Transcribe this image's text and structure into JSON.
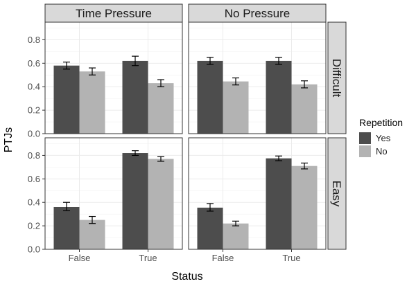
{
  "chart_data": {
    "type": "bar",
    "facet_columns": [
      "Time Pressure",
      "No Pressure"
    ],
    "facet_rows": [
      "Difficult",
      "Easy"
    ],
    "categories": [
      "False",
      "True"
    ],
    "xlabel": "Status",
    "ylabel": "PTJs",
    "ylim": [
      0,
      0.95
    ],
    "yticks": [
      0.0,
      0.2,
      0.4,
      0.6,
      0.8
    ],
    "ytick_labels": [
      "0.0",
      "0.2",
      "0.4",
      "0.6",
      "0.8"
    ],
    "legend": {
      "title": "Repetition",
      "position": "right",
      "entries": [
        {
          "name": "Yes",
          "color": "#4d4d4d"
        },
        {
          "name": "No",
          "color": "#b3b3b3"
        }
      ]
    },
    "grid": true,
    "panels": [
      {
        "row": "Difficult",
        "col": "Time Pressure",
        "series": [
          {
            "name": "Yes",
            "values": [
              0.58,
              0.62
            ],
            "err_low": [
              0.55,
              0.58
            ],
            "err_high": [
              0.61,
              0.66
            ]
          },
          {
            "name": "No",
            "values": [
              0.53,
              0.43
            ],
            "err_low": [
              0.5,
              0.4
            ],
            "err_high": [
              0.56,
              0.46
            ]
          }
        ]
      },
      {
        "row": "Difficult",
        "col": "No Pressure",
        "series": [
          {
            "name": "Yes",
            "values": [
              0.62,
              0.62
            ],
            "err_low": [
              0.59,
              0.59
            ],
            "err_high": [
              0.65,
              0.65
            ]
          },
          {
            "name": "No",
            "values": [
              0.445,
              0.42
            ],
            "err_low": [
              0.415,
              0.39
            ],
            "err_high": [
              0.475,
              0.45
            ]
          }
        ]
      },
      {
        "row": "Easy",
        "col": "Time Pressure",
        "series": [
          {
            "name": "Yes",
            "values": [
              0.36,
              0.82
            ],
            "err_low": [
              0.33,
              0.8
            ],
            "err_high": [
              0.4,
              0.84
            ]
          },
          {
            "name": "No",
            "values": [
              0.25,
              0.77
            ],
            "err_low": [
              0.22,
              0.75
            ],
            "err_high": [
              0.28,
              0.79
            ]
          }
        ]
      },
      {
        "row": "Easy",
        "col": "No Pressure",
        "series": [
          {
            "name": "Yes",
            "values": [
              0.355,
              0.775
            ],
            "err_low": [
              0.325,
              0.755
            ],
            "err_high": [
              0.39,
              0.795
            ]
          },
          {
            "name": "No",
            "values": [
              0.22,
              0.71
            ],
            "err_low": [
              0.2,
              0.685
            ],
            "err_high": [
              0.24,
              0.735
            ]
          }
        ]
      }
    ]
  }
}
